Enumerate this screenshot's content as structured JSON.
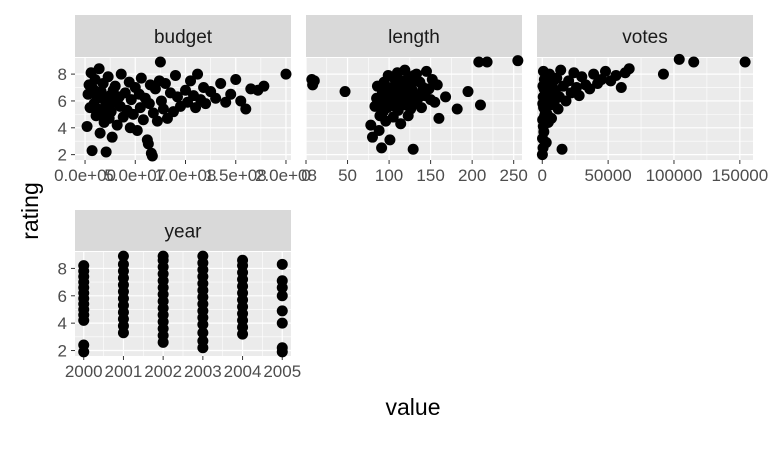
{
  "chart_data": {
    "type": "scatter",
    "xlabel": "value",
    "ylabel": "rating",
    "grid": true,
    "colors": {
      "panel_bg": "#ebebeb",
      "grid_major": "#ffffff",
      "strip_bg": "#d9d9d9",
      "point": "#000000"
    },
    "y_ticks": [
      "2",
      "4",
      "6",
      "8"
    ],
    "y_tick_values": [
      2,
      4,
      6,
      8
    ],
    "ylim": [
      1.6,
      9.2
    ],
    "panels": [
      {
        "name": "budget",
        "xlim": [
          -10000000.0,
          205000000.0
        ],
        "x_ticks": [
          "0.0e+00",
          "5.0e+07",
          "1.0e+08",
          "1.5e+08",
          "2.0e+08"
        ],
        "x_tick_values": [
          0,
          50000000.0,
          100000000.0,
          150000000.0,
          200000000.0
        ],
        "points": [
          [
            2000000.0,
            4.1
          ],
          [
            3000000.0,
            6.5
          ],
          [
            4000000.0,
            7.2
          ],
          [
            5000000.0,
            5.5
          ],
          [
            6000000.0,
            8.1
          ],
          [
            7000000.0,
            2.3
          ],
          [
            8000000.0,
            6.9
          ],
          [
            9000000.0,
            5.8
          ],
          [
            10000000.0,
            7.6
          ],
          [
            11000000.0,
            4.9
          ],
          [
            12000000.0,
            6.2
          ],
          [
            13000000.0,
            5.4
          ],
          [
            14000000.0,
            8.4
          ],
          [
            15000000.0,
            3.6
          ],
          [
            16000000.0,
            6.7
          ],
          [
            17000000.0,
            5.1
          ],
          [
            18000000.0,
            7.3
          ],
          [
            19000000.0,
            4.4
          ],
          [
            20000000.0,
            6.0
          ],
          [
            21000000.0,
            2.2
          ],
          [
            22000000.0,
            5.7
          ],
          [
            23000000.0,
            7.8
          ],
          [
            24000000.0,
            4.7
          ],
          [
            25000000.0,
            6.4
          ],
          [
            26000000.0,
            5.2
          ],
          [
            27000000.0,
            3.3
          ],
          [
            28000000.0,
            6.8
          ],
          [
            29000000.0,
            5.9
          ],
          [
            30000000.0,
            7.1
          ],
          [
            32000000.0,
            4.2
          ],
          [
            34000000.0,
            6.3
          ],
          [
            35000000.0,
            5.6
          ],
          [
            36000000.0,
            8.0
          ],
          [
            38000000.0,
            4.8
          ],
          [
            40000000.0,
            6.6
          ],
          [
            42000000.0,
            5.3
          ],
          [
            44000000.0,
            7.4
          ],
          [
            45000000.0,
            4.0
          ],
          [
            46000000.0,
            6.1
          ],
          [
            48000000.0,
            5.0
          ],
          [
            50000000.0,
            7.0
          ],
          [
            52000000.0,
            3.8
          ],
          [
            54000000.0,
            6.5
          ],
          [
            55000000.0,
            5.5
          ],
          [
            56000000.0,
            7.7
          ],
          [
            58000000.0,
            4.6
          ],
          [
            60000000.0,
            6.2
          ],
          [
            62000000.0,
            3.1
          ],
          [
            63000000.0,
            2.8
          ],
          [
            64000000.0,
            5.8
          ],
          [
            65000000.0,
            7.2
          ],
          [
            66000000.0,
            2.1
          ],
          [
            67000000.0,
            1.9
          ],
          [
            68000000.0,
            5.1
          ],
          [
            70000000.0,
            6.9
          ],
          [
            72000000.0,
            4.5
          ],
          [
            74000000.0,
            7.5
          ],
          [
            75000000.0,
            8.9
          ],
          [
            76000000.0,
            6.0
          ],
          [
            78000000.0,
            5.4
          ],
          [
            80000000.0,
            7.3
          ],
          [
            82000000.0,
            4.7
          ],
          [
            85000000.0,
            6.6
          ],
          [
            88000000.0,
            5.2
          ],
          [
            90000000.0,
            7.9
          ],
          [
            92000000.0,
            6.3
          ],
          [
            95000000.0,
            5.6
          ],
          [
            100000000.0,
            6.8
          ],
          [
            102000000.0,
            5.9
          ],
          [
            105000000.0,
            7.5
          ],
          [
            108000000.0,
            6.4
          ],
          [
            110000000.0,
            5.5
          ],
          [
            112000000.0,
            8.0
          ],
          [
            115000000.0,
            6.1
          ],
          [
            118000000.0,
            7.0
          ],
          [
            120000000.0,
            5.8
          ],
          [
            125000000.0,
            6.7
          ],
          [
            130000000.0,
            6.2
          ],
          [
            135000000.0,
            7.3
          ],
          [
            140000000.0,
            5.9
          ],
          [
            145000000.0,
            6.5
          ],
          [
            150000000.0,
            7.6
          ],
          [
            155000000.0,
            6.0
          ],
          [
            160000000.0,
            5.4
          ],
          [
            165000000.0,
            6.9
          ],
          [
            172000000.0,
            6.8
          ],
          [
            178000000.0,
            7.1
          ],
          [
            200000000.0,
            8.0
          ]
        ]
      },
      {
        "name": "length",
        "xlim": [
          0,
          260
        ],
        "x_ticks": [
          "0",
          "50",
          "100",
          "150",
          "200",
          "250"
        ],
        "x_tick_values": [
          0,
          50,
          100,
          150,
          200,
          250
        ],
        "points": [
          [
            7,
            7.6
          ],
          [
            8,
            7.2
          ],
          [
            10,
            7.5
          ],
          [
            47,
            6.7
          ],
          [
            78,
            4.2
          ],
          [
            80,
            3.3
          ],
          [
            83,
            5.6
          ],
          [
            85,
            6.2
          ],
          [
            86,
            7.1
          ],
          [
            88,
            3.8
          ],
          [
            89,
            4.9
          ],
          [
            90,
            5.9
          ],
          [
            91,
            2.5
          ],
          [
            92,
            6.6
          ],
          [
            93,
            5.2
          ],
          [
            94,
            7.4
          ],
          [
            95,
            6.0
          ],
          [
            96,
            4.5
          ],
          [
            97,
            6.8
          ],
          [
            98,
            5.5
          ],
          [
            99,
            7.9
          ],
          [
            100,
            6.3
          ],
          [
            101,
            3.1
          ],
          [
            102,
            5.8
          ],
          [
            103,
            7.0
          ],
          [
            104,
            6.5
          ],
          [
            105,
            4.8
          ],
          [
            106,
            7.7
          ],
          [
            107,
            5.6
          ],
          [
            108,
            6.9
          ],
          [
            109,
            6.1
          ],
          [
            110,
            8.1
          ],
          [
            111,
            5.3
          ],
          [
            112,
            7.2
          ],
          [
            113,
            6.4
          ],
          [
            114,
            4.3
          ],
          [
            115,
            6.7
          ],
          [
            116,
            7.5
          ],
          [
            117,
            5.9
          ],
          [
            118,
            6.2
          ],
          [
            119,
            8.3
          ],
          [
            120,
            5.7
          ],
          [
            121,
            7.1
          ],
          [
            122,
            6.6
          ],
          [
            123,
            4.9
          ],
          [
            124,
            7.8
          ],
          [
            125,
            6.0
          ],
          [
            126,
            5.4
          ],
          [
            127,
            7.3
          ],
          [
            128,
            6.8
          ],
          [
            129,
            2.4
          ],
          [
            130,
            7.9
          ],
          [
            131,
            5.8
          ],
          [
            132,
            6.5
          ],
          [
            133,
            8.0
          ],
          [
            135,
            6.2
          ],
          [
            137,
            7.4
          ],
          [
            139,
            5.5
          ],
          [
            141,
            7.0
          ],
          [
            143,
            6.4
          ],
          [
            145,
            8.2
          ],
          [
            148,
            6.9
          ],
          [
            150,
            6.1
          ],
          [
            152,
            7.6
          ],
          [
            155,
            5.9
          ],
          [
            158,
            7.2
          ],
          [
            160,
            4.7
          ],
          [
            168,
            6.3
          ],
          [
            182,
            5.4
          ],
          [
            195,
            6.7
          ],
          [
            208,
            8.9
          ],
          [
            210,
            5.7
          ],
          [
            218,
            8.9
          ],
          [
            255,
            9.0
          ]
        ]
      },
      {
        "name": "votes",
        "xlim": [
          -4000,
          160000
        ],
        "x_ticks": [
          "0",
          "50000",
          "100000",
          "150000"
        ],
        "x_tick_values": [
          0,
          50000,
          100000,
          150000
        ],
        "points": [
          [
            100,
            2.0
          ],
          [
            200,
            3.2
          ],
          [
            300,
            4.6
          ],
          [
            400,
            5.8
          ],
          [
            500,
            7.1
          ],
          [
            600,
            2.5
          ],
          [
            700,
            6.3
          ],
          [
            800,
            4.1
          ],
          [
            900,
            8.2
          ],
          [
            1000,
            5.5
          ],
          [
            1200,
            3.7
          ],
          [
            1400,
            6.9
          ],
          [
            1600,
            7.6
          ],
          [
            1800,
            4.9
          ],
          [
            2000,
            6.0
          ],
          [
            2300,
            5.2
          ],
          [
            2600,
            7.3
          ],
          [
            3000,
            2.9
          ],
          [
            3400,
            6.6
          ],
          [
            3800,
            5.0
          ],
          [
            4200,
            7.9
          ],
          [
            4600,
            4.4
          ],
          [
            5000,
            6.2
          ],
          [
            5500,
            8.0
          ],
          [
            6000,
            5.7
          ],
          [
            6500,
            7.0
          ],
          [
            7000,
            4.7
          ],
          [
            7500,
            6.5
          ],
          [
            8000,
            7.4
          ],
          [
            9000,
            5.9
          ],
          [
            10000,
            6.8
          ],
          [
            11000,
            7.7
          ],
          [
            12000,
            5.4
          ],
          [
            13000,
            6.3
          ],
          [
            14000,
            8.3
          ],
          [
            15000,
            2.4
          ],
          [
            16000,
            7.1
          ],
          [
            18000,
            6.0
          ],
          [
            20000,
            7.5
          ],
          [
            22000,
            6.6
          ],
          [
            24000,
            8.1
          ],
          [
            26000,
            7.0
          ],
          [
            28000,
            6.4
          ],
          [
            30000,
            7.8
          ],
          [
            33000,
            7.2
          ],
          [
            36000,
            6.9
          ],
          [
            39000,
            8.0
          ],
          [
            42000,
            7.3
          ],
          [
            45000,
            7.6
          ],
          [
            48000,
            8.2
          ],
          [
            52000,
            7.5
          ],
          [
            56000,
            7.9
          ],
          [
            60000,
            7.0
          ],
          [
            63000,
            8.1
          ],
          [
            66000,
            8.4
          ],
          [
            92000,
            8.0
          ],
          [
            104000,
            9.1
          ],
          [
            115000,
            8.9
          ],
          [
            154000,
            8.9
          ]
        ]
      },
      {
        "name": "year",
        "xlim": [
          1999.78,
          2005.22
        ],
        "x_ticks": [
          "2000",
          "2001",
          "2002",
          "2003",
          "2004",
          "2005"
        ],
        "x_tick_values": [
          2000,
          2001,
          2002,
          2003,
          2004,
          2005
        ],
        "points": [
          [
            2000,
            1.9
          ],
          [
            2000,
            2.4
          ],
          [
            2000,
            4.2
          ],
          [
            2000,
            4.6
          ],
          [
            2000,
            5.0
          ],
          [
            2000,
            5.4
          ],
          [
            2000,
            5.8
          ],
          [
            2000,
            6.2
          ],
          [
            2000,
            6.6
          ],
          [
            2000,
            7.0
          ],
          [
            2000,
            7.4
          ],
          [
            2000,
            7.8
          ],
          [
            2000,
            8.2
          ],
          [
            2001,
            3.3
          ],
          [
            2001,
            3.8
          ],
          [
            2001,
            4.3
          ],
          [
            2001,
            4.8
          ],
          [
            2001,
            5.3
          ],
          [
            2001,
            5.8
          ],
          [
            2001,
            6.3
          ],
          [
            2001,
            6.8
          ],
          [
            2001,
            7.3
          ],
          [
            2001,
            7.8
          ],
          [
            2001,
            8.3
          ],
          [
            2001,
            8.9
          ],
          [
            2002,
            2.6
          ],
          [
            2002,
            3.1
          ],
          [
            2002,
            3.6
          ],
          [
            2002,
            4.1
          ],
          [
            2002,
            4.6
          ],
          [
            2002,
            5.1
          ],
          [
            2002,
            5.6
          ],
          [
            2002,
            6.1
          ],
          [
            2002,
            6.6
          ],
          [
            2002,
            7.1
          ],
          [
            2002,
            7.6
          ],
          [
            2002,
            8.1
          ],
          [
            2002,
            8.6
          ],
          [
            2002,
            8.9
          ],
          [
            2003,
            2.2
          ],
          [
            2003,
            2.7
          ],
          [
            2003,
            3.3
          ],
          [
            2003,
            3.9
          ],
          [
            2003,
            4.4
          ],
          [
            2003,
            4.9
          ],
          [
            2003,
            5.4
          ],
          [
            2003,
            5.9
          ],
          [
            2003,
            6.4
          ],
          [
            2003,
            6.9
          ],
          [
            2003,
            7.4
          ],
          [
            2003,
            7.9
          ],
          [
            2003,
            8.4
          ],
          [
            2003,
            8.9
          ],
          [
            2004,
            3.2
          ],
          [
            2004,
            3.7
          ],
          [
            2004,
            4.2
          ],
          [
            2004,
            4.7
          ],
          [
            2004,
            5.2
          ],
          [
            2004,
            5.7
          ],
          [
            2004,
            6.2
          ],
          [
            2004,
            6.7
          ],
          [
            2004,
            7.2
          ],
          [
            2004,
            7.7
          ],
          [
            2004,
            8.2
          ],
          [
            2004,
            8.6
          ],
          [
            2005,
            1.9
          ],
          [
            2005,
            2.2
          ],
          [
            2005,
            4.0
          ],
          [
            2005,
            4.9
          ],
          [
            2005,
            6.0
          ],
          [
            2005,
            6.6
          ],
          [
            2005,
            7.1
          ],
          [
            2005,
            8.3
          ]
        ]
      }
    ]
  }
}
